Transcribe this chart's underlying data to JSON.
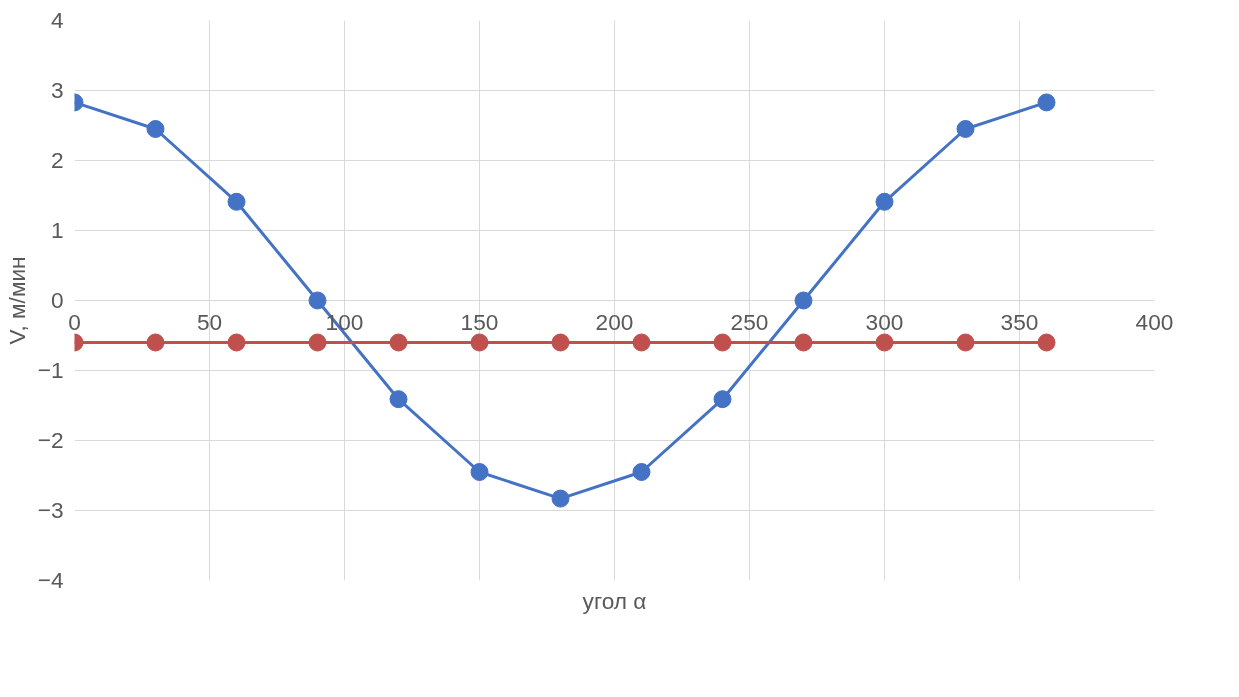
{
  "chart_data": {
    "type": "line",
    "xlabel": "угол α",
    "ylabel": "V, м/мин",
    "x": [
      0,
      30,
      60,
      90,
      120,
      150,
      180,
      210,
      240,
      270,
      300,
      330,
      360
    ],
    "series": [
      {
        "color": "#4472c4",
        "values": [
          2.83,
          2.45,
          1.41,
          0,
          -1.41,
          -2.45,
          -2.83,
          -2.45,
          -1.41,
          0,
          1.41,
          2.45,
          2.83
        ]
      },
      {
        "color": "#c0504d",
        "values": [
          -0.6,
          -0.6,
          -0.6,
          -0.6,
          -0.6,
          -0.6,
          -0.6,
          -0.6,
          -0.6,
          -0.6,
          -0.6,
          -0.6,
          -0.6
        ]
      }
    ],
    "xlim": [
      0,
      400
    ],
    "xticks": [
      0,
      50,
      100,
      150,
      200,
      250,
      300,
      350,
      400
    ],
    "ylim": [
      -4,
      4
    ],
    "yticks": [
      -4,
      -3,
      -2,
      -1,
      0,
      1,
      2,
      3,
      4
    ],
    "grid": true,
    "marker": "circle",
    "line_style": "solid"
  }
}
